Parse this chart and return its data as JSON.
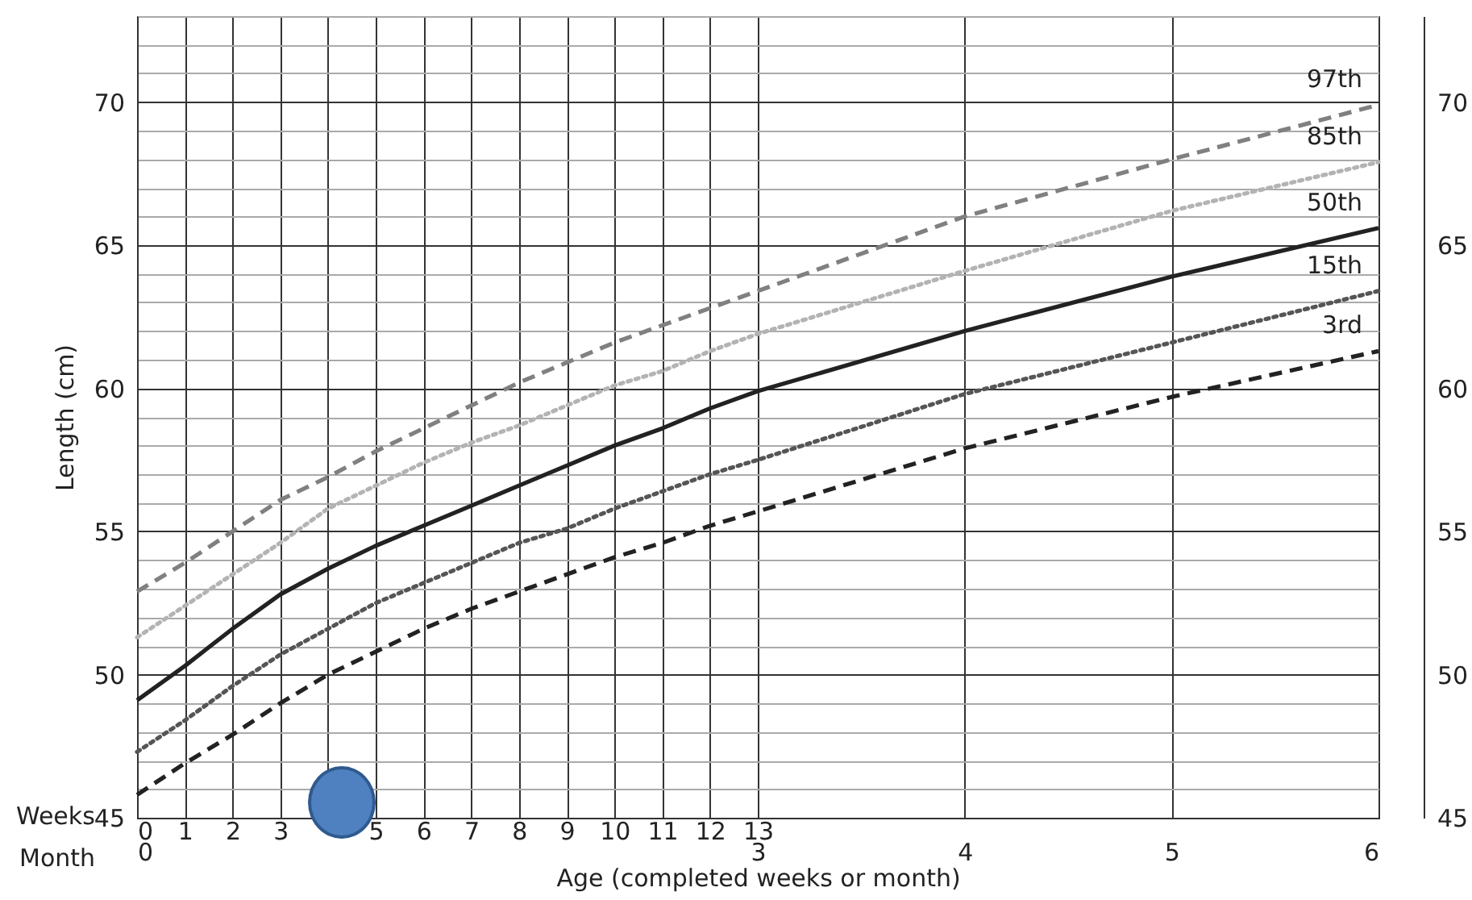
{
  "chart_data": {
    "type": "line",
    "xlabel": "Age (completed weeks or month)",
    "ylabel": "Length (cm)",
    "annotations": [
      "Weeks",
      "Month"
    ],
    "x": [
      0,
      1,
      2,
      3,
      4,
      5,
      6,
      7,
      8,
      9,
      10,
      11,
      12,
      13,
      17.33,
      21.67,
      26
    ],
    "xlim": [
      0,
      26
    ],
    "xticks": [
      0,
      1,
      2,
      3,
      {
        "value": 4,
        "label": null
      },
      5,
      6,
      7,
      8,
      9,
      10,
      11,
      12,
      13
    ],
    "x2lim": [
      0,
      6
    ],
    "x2ticks": [
      0,
      3,
      4,
      5,
      6
    ],
    "ylim": [
      45,
      73
    ],
    "yticks": [
      45,
      {
        "value": 46,
        "label": null
      },
      {
        "value": 47,
        "label": null
      },
      {
        "value": 48,
        "label": null
      },
      {
        "value": 49,
        "label": null
      },
      50,
      {
        "value": 51,
        "label": null
      },
      {
        "value": 52,
        "label": null
      },
      {
        "value": 53,
        "label": null
      },
      {
        "value": 54,
        "label": null
      },
      55,
      {
        "value": 56,
        "label": null
      },
      {
        "value": 57,
        "label": null
      },
      {
        "value": 58,
        "label": null
      },
      {
        "value": 59,
        "label": null
      },
      60,
      {
        "value": 61,
        "label": null
      },
      {
        "value": 62,
        "label": null
      },
      {
        "value": 63,
        "label": null
      },
      {
        "value": 64,
        "label": null
      },
      65,
      {
        "value": 66,
        "label": null
      },
      {
        "value": 67,
        "label": null
      },
      {
        "value": 68,
        "label": null
      },
      {
        "value": 69,
        "label": null
      },
      70,
      {
        "value": 71,
        "label": null
      },
      {
        "value": 72,
        "label": null
      },
      {
        "value": 73,
        "label": null
      }
    ],
    "y2lim": [
      45,
      73
    ],
    "y2ticks": [
      45,
      50,
      55,
      60,
      65,
      70
    ],
    "grid": true,
    "series": [
      {
        "name": "97th",
        "color": "#808080",
        "line_style": "dashed",
        "values": [
          52.9,
          53.9,
          55.0,
          56.1,
          56.9,
          57.8,
          58.6,
          59.4,
          60.2,
          60.9,
          61.6,
          62.2,
          62.8,
          63.4,
          66.0,
          68.0,
          69.9
        ]
      },
      {
        "name": "85th",
        "color": "#b3b3b3",
        "line_style": "dotted",
        "values": [
          51.3,
          52.4,
          53.5,
          54.6,
          55.8,
          56.6,
          57.4,
          58.1,
          58.7,
          59.4,
          60.1,
          60.6,
          61.3,
          61.9,
          64.1,
          66.2,
          67.9
        ]
      },
      {
        "name": "50th",
        "color": "#222222",
        "line_style": "solid",
        "values": [
          49.1,
          50.3,
          51.6,
          52.8,
          53.7,
          54.5,
          55.2,
          55.9,
          56.6,
          57.3,
          58.0,
          58.6,
          59.3,
          59.9,
          62.0,
          63.9,
          65.6
        ]
      },
      {
        "name": "15th",
        "color": "#555555",
        "line_style": "dotted",
        "values": [
          47.3,
          48.4,
          49.6,
          50.7,
          51.6,
          52.5,
          53.2,
          53.9,
          54.6,
          55.1,
          55.8,
          56.4,
          57.0,
          57.5,
          59.8,
          61.6,
          63.4
        ]
      },
      {
        "name": "3rd",
        "color": "#222222",
        "line_style": "dashed",
        "values": [
          45.8,
          46.9,
          47.9,
          49.0,
          50.0,
          50.8,
          51.6,
          52.3,
          52.9,
          53.5,
          54.1,
          54.6,
          55.2,
          55.7,
          57.9,
          59.7,
          61.3
        ]
      }
    ]
  }
}
